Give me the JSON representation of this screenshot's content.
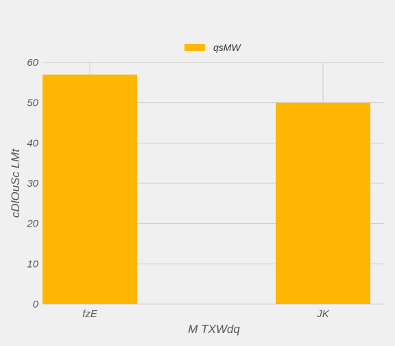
{
  "chart_data": {
    "type": "bar",
    "categories": [
      "fzE",
      "JK"
    ],
    "series": [
      {
        "name": "qsMW",
        "values": [
          57,
          50
        ],
        "color": "#ffb703"
      }
    ],
    "xlabel": "M TXWdq",
    "ylabel": "cDlOuSc LMt",
    "ylim": [
      0,
      60
    ],
    "yticks": [
      0,
      10,
      20,
      30,
      40,
      50,
      60
    ],
    "grid": true,
    "legend_position": "top-center",
    "background": "#f0f0f0"
  }
}
